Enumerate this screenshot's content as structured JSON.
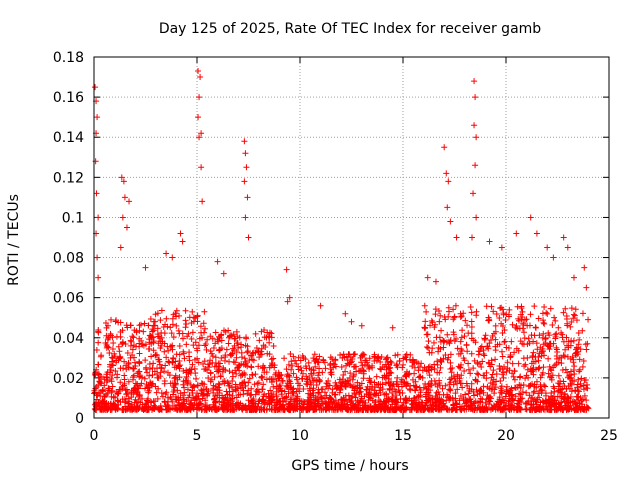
{
  "chart_data": {
    "type": "scatter",
    "title": "Day 125 of 2025, Rate Of TEC Index for receiver gamb",
    "xlabel": "GPS time / hours",
    "ylabel": "ROTI / TECUs",
    "xlim": [
      0,
      25
    ],
    "ylim": [
      0,
      0.18
    ],
    "x_ticks": [
      "0",
      "5",
      "10",
      "15",
      "20",
      "25"
    ],
    "y_ticks": [
      "0",
      "0.02",
      "0.04",
      "0.06",
      "0.08",
      "0.1",
      "0.12",
      "0.14",
      "0.16",
      "0.18"
    ],
    "grid": true,
    "marker": "+",
    "series": [
      {
        "name": "ROTI",
        "color": "#ff0000",
        "points": [
          [
            0.05,
            0.165
          ],
          [
            0.1,
            0.158
          ],
          [
            0.15,
            0.15
          ],
          [
            0.1,
            0.142
          ],
          [
            0.08,
            0.128
          ],
          [
            0.12,
            0.112
          ],
          [
            0.2,
            0.1
          ],
          [
            0.1,
            0.092
          ],
          [
            0.15,
            0.08
          ],
          [
            0.2,
            0.07
          ],
          [
            1.35,
            0.12
          ],
          [
            1.45,
            0.118
          ],
          [
            1.5,
            0.11
          ],
          [
            1.7,
            0.108
          ],
          [
            1.4,
            0.1
          ],
          [
            1.6,
            0.095
          ],
          [
            1.3,
            0.085
          ],
          [
            5.05,
            0.173
          ],
          [
            5.15,
            0.17
          ],
          [
            5.1,
            0.16
          ],
          [
            5.05,
            0.15
          ],
          [
            5.2,
            0.142
          ],
          [
            5.1,
            0.14
          ],
          [
            5.2,
            0.125
          ],
          [
            5.25,
            0.108
          ],
          [
            7.3,
            0.138
          ],
          [
            7.35,
            0.132
          ],
          [
            7.4,
            0.125
          ],
          [
            7.3,
            0.118
          ],
          [
            7.45,
            0.11
          ],
          [
            7.35,
            0.1
          ],
          [
            7.5,
            0.09
          ],
          [
            18.45,
            0.168
          ],
          [
            18.5,
            0.16
          ],
          [
            18.45,
            0.146
          ],
          [
            18.55,
            0.14
          ],
          [
            18.5,
            0.126
          ],
          [
            18.4,
            0.112
          ],
          [
            18.55,
            0.1
          ],
          [
            18.35,
            0.09
          ],
          [
            17.0,
            0.135
          ],
          [
            17.1,
            0.122
          ],
          [
            17.2,
            0.118
          ],
          [
            17.15,
            0.105
          ],
          [
            17.3,
            0.098
          ],
          [
            4.2,
            0.092
          ],
          [
            4.3,
            0.088
          ],
          [
            3.5,
            0.082
          ],
          [
            3.8,
            0.08
          ],
          [
            2.5,
            0.075
          ],
          [
            6.0,
            0.078
          ],
          [
            6.3,
            0.072
          ],
          [
            9.35,
            0.074
          ],
          [
            9.5,
            0.06
          ],
          [
            9.4,
            0.058
          ],
          [
            11.0,
            0.056
          ],
          [
            12.2,
            0.052
          ],
          [
            12.5,
            0.048
          ],
          [
            13.0,
            0.046
          ],
          [
            14.5,
            0.045
          ],
          [
            16.2,
            0.07
          ],
          [
            16.6,
            0.068
          ],
          [
            17.6,
            0.09
          ],
          [
            19.2,
            0.088
          ],
          [
            19.8,
            0.085
          ],
          [
            20.5,
            0.092
          ],
          [
            21.2,
            0.1
          ],
          [
            21.5,
            0.092
          ],
          [
            22.0,
            0.085
          ],
          [
            22.3,
            0.08
          ],
          [
            22.8,
            0.09
          ],
          [
            23.0,
            0.085
          ],
          [
            23.3,
            0.07
          ],
          [
            23.8,
            0.075
          ],
          [
            23.9,
            0.065
          ]
        ]
      }
    ]
  }
}
